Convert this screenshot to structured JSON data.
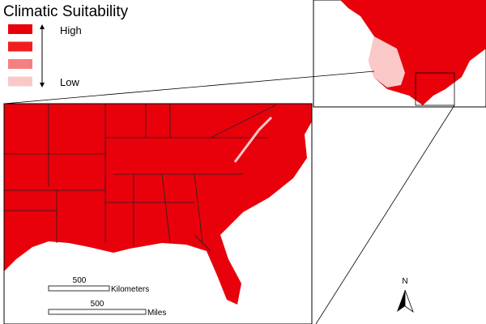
{
  "legend": {
    "title": "Climatic Suitability",
    "high": "High",
    "low": "Low",
    "colors": [
      "#e8000b",
      "#f21e1e",
      "#f58080",
      "#fbc8c8"
    ]
  },
  "scale_bars": {
    "km_value": "500",
    "km_unit": "Kilometers",
    "mi_value": "500",
    "mi_unit": "Miles"
  },
  "north_arrow": "N"
}
